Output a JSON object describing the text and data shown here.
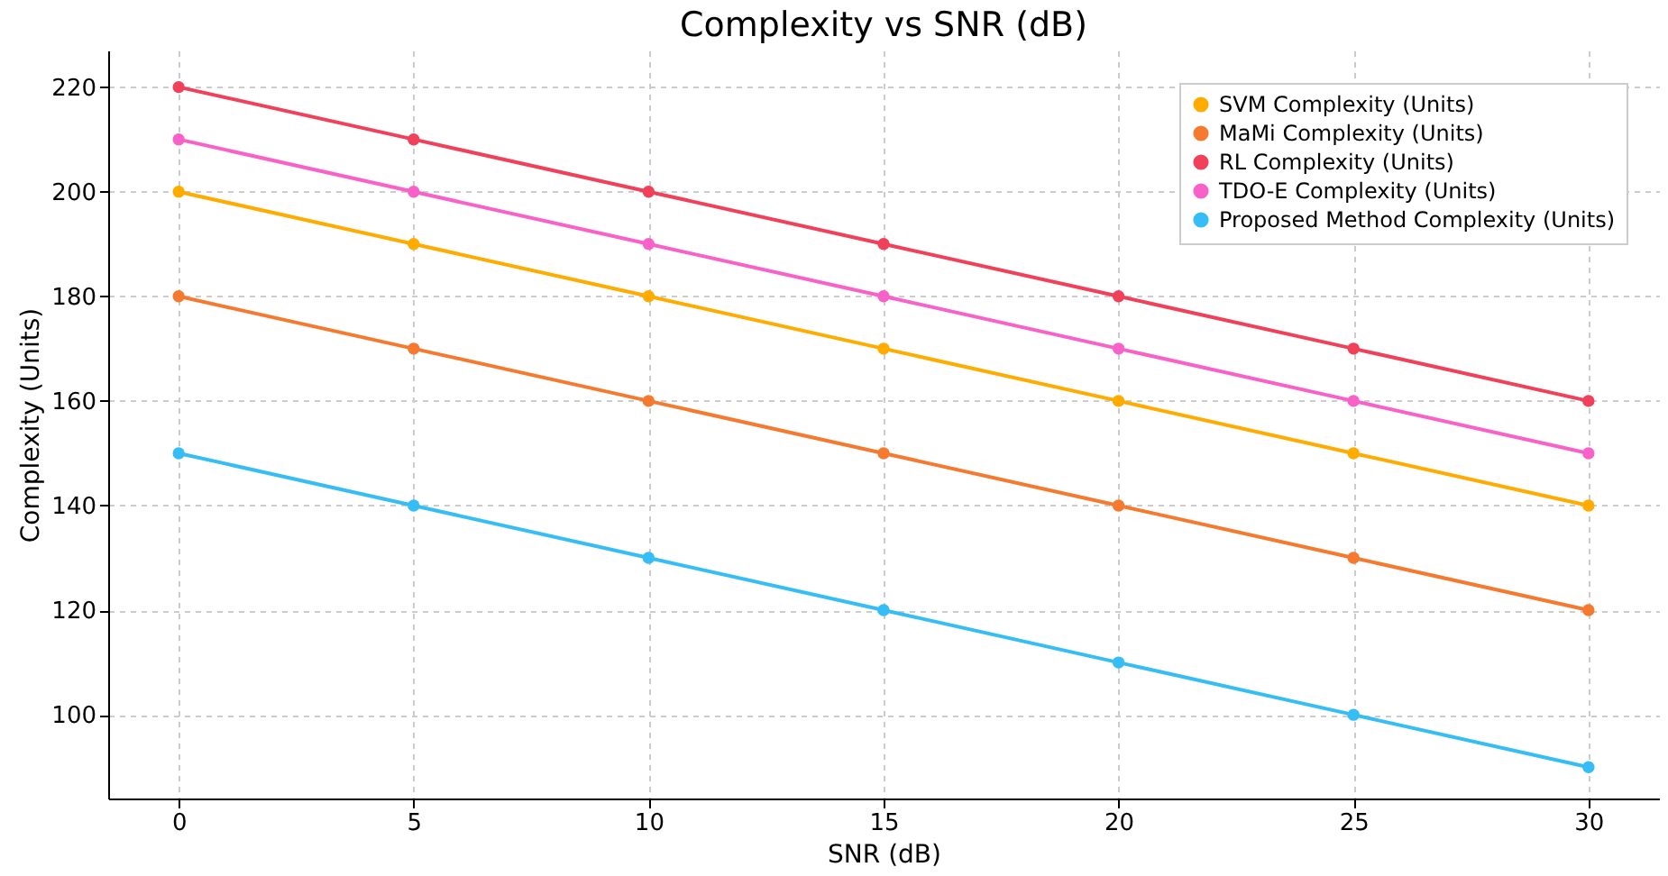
{
  "chart_data": {
    "type": "line",
    "title": "Complexity vs SNR (dB)",
    "xlabel": "SNR (dB)",
    "ylabel": "Complexity (Units)",
    "x": [
      0,
      5,
      10,
      15,
      20,
      25,
      30
    ],
    "series": [
      {
        "name": "SVM Complexity (Units)",
        "color": "#ffab00",
        "values": [
          200,
          190,
          180,
          170,
          160,
          150,
          140
        ]
      },
      {
        "name": "MaMi Complexity (Units)",
        "color": "#f57a30",
        "values": [
          180,
          170,
          160,
          150,
          140,
          130,
          120
        ]
      },
      {
        "name": "RL Complexity (Units)",
        "color": "#f0405a",
        "values": [
          220,
          210,
          200,
          190,
          180,
          170,
          160
        ]
      },
      {
        "name": "TDO-E Complexity (Units)",
        "color": "#f862c8",
        "values": [
          210,
          200,
          190,
          180,
          170,
          160,
          150
        ]
      },
      {
        "name": "Proposed Method Complexity (Units)",
        "color": "#36bdf5",
        "values": [
          150,
          140,
          130,
          120,
          110,
          100,
          90
        ]
      }
    ],
    "xlim": [
      -1.5,
      31.5
    ],
    "ylim": [
      84,
      227
    ],
    "xticks": [
      0,
      5,
      10,
      15,
      20,
      25,
      30
    ],
    "yticks": [
      100,
      120,
      140,
      160,
      180,
      200,
      220
    ],
    "grid": true,
    "legend": "top right",
    "marker": "circle",
    "line_style": "solid"
  }
}
